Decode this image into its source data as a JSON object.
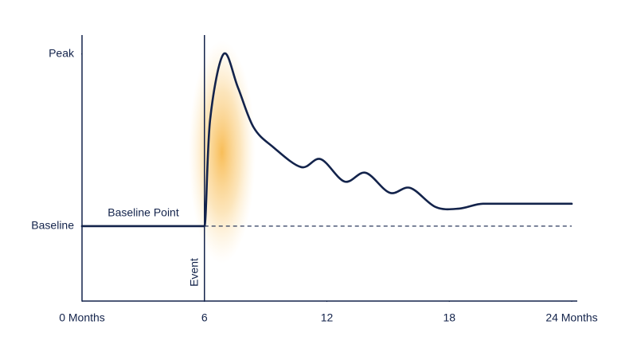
{
  "chart_data": {
    "type": "line",
    "x": [
      0,
      6,
      6.28,
      6.94,
      7.64,
      8.41,
      9.38,
      10.74,
      11.7,
      12.87,
      13.9,
      15.08,
      16.09,
      17.33,
      18.49,
      19.65,
      24
    ],
    "series": [
      {
        "color": "#13234b",
        "values": [
          0,
          0,
          62,
          100,
          80.6,
          57.4,
          45.8,
          34.3,
          38.9,
          25.9,
          31,
          19.4,
          22.2,
          11.1,
          10.2,
          13,
          13
        ]
      }
    ],
    "xlim": [
      0,
      24
    ],
    "xticks": [
      {
        "value": 0,
        "label": "0 Months"
      },
      6,
      12,
      18,
      {
        "value": 24,
        "label": "24 Months"
      }
    ],
    "ylim": [
      -43.5,
      111
    ],
    "yticks": [
      {
        "value": 0,
        "label": "Baseline"
      },
      {
        "value": 100,
        "label": "Peak"
      }
    ],
    "annotations": [
      {
        "text": "Event",
        "x": 6
      },
      {
        "text": "Baseline Point",
        "x": 6,
        "y": 0
      }
    ],
    "baseline_line_color": "#13234b",
    "glow_color": "#f7b23b"
  }
}
